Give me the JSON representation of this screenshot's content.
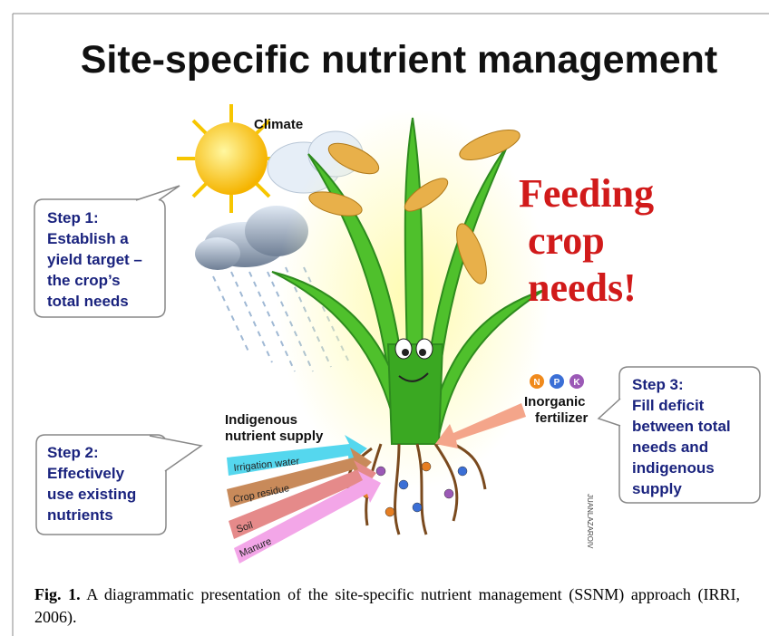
{
  "figure": {
    "title": "Site-specific nutrient management",
    "climate": "Climate",
    "feeding": [
      "Feeding",
      "crop",
      "needs!"
    ],
    "step1": [
      "Step 1:",
      "Establish a",
      "yield target –",
      "the crop’s",
      "total needs"
    ],
    "step2": [
      "Step 2:",
      "Effectively",
      "use existing",
      "nutrients"
    ],
    "step3": [
      "Step 3:",
      "Fill deficit",
      "between total",
      "needs and",
      "indigenous",
      "supply"
    ],
    "indigenous": [
      "Indigenous",
      "nutrient supply"
    ],
    "sources": [
      "Irrigation water",
      "Crop residue",
      "Soil",
      "Manure"
    ],
    "inorganic": [
      "Inorganic",
      "fertilizer"
    ],
    "nutrients": [
      "N",
      "P",
      "K"
    ],
    "signature": "JUANLAZAROIV"
  },
  "caption": {
    "label": "Fig. 1.",
    "text": " A diagrammatic presentation of the site-specific nutrient management (SSNM) approach (IRRI, 2006)."
  }
}
